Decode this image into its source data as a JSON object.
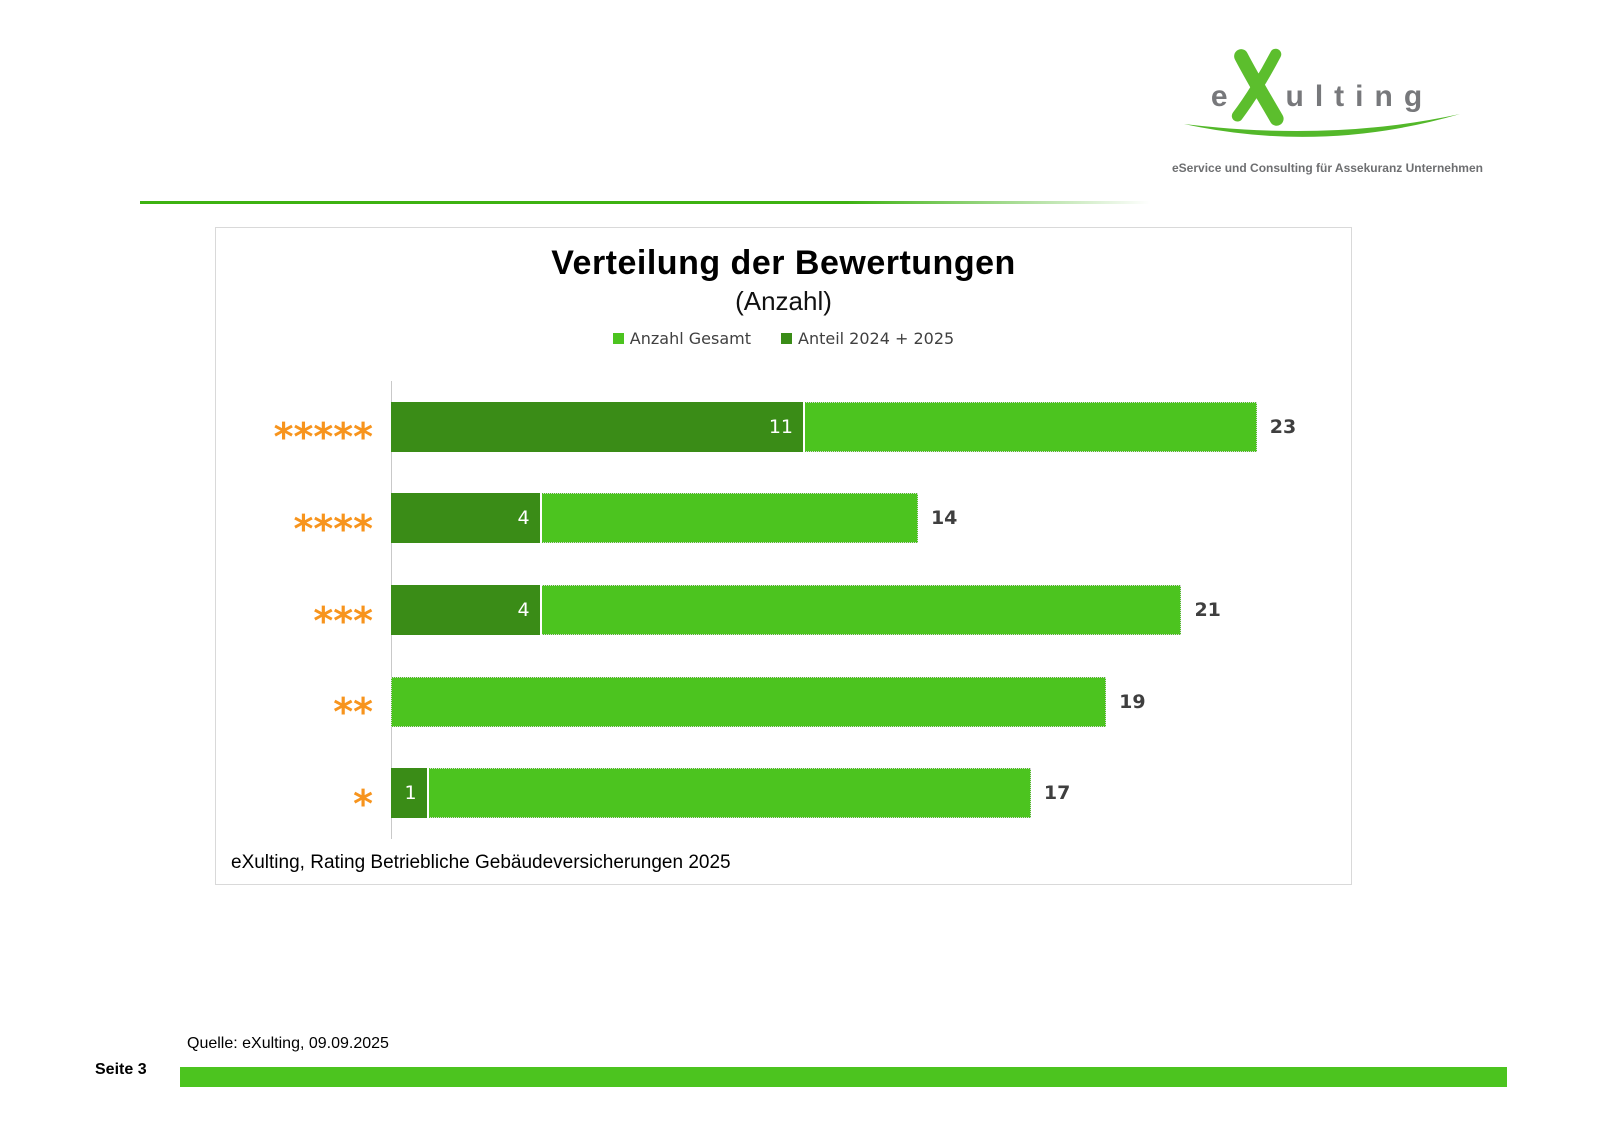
{
  "logo": {
    "word_prefix": "e",
    "word_x": "X",
    "word_suffix": "ulting",
    "tagline": "eService und Consulting für Assekuranz Unternehmen"
  },
  "chart": {
    "title": "Verteilung der Bewertungen",
    "subtitle": "(Anzahl)",
    "caption": "eXulting, Rating Betriebliche Gebäudeversicherungen 2025"
  },
  "chart_data": {
    "type": "bar",
    "orientation": "horizontal",
    "title": "Verteilung der Bewertungen",
    "subtitle": "(Anzahl)",
    "categories": [
      "*****",
      "****",
      "***",
      "**",
      "*"
    ],
    "series": [
      {
        "name": "Anzahl Gesamt",
        "color": "#4CC41F",
        "values": [
          23,
          14,
          21,
          19,
          17
        ]
      },
      {
        "name": "Anteil 2024 + 2025",
        "color": "#3A8C17",
        "values": [
          11,
          4,
          4,
          0,
          1
        ]
      }
    ],
    "xlim": [
      0,
      25
    ],
    "legend_position": "top",
    "grid": false,
    "value_label_style": "total outside right, partial inside bar in white"
  },
  "footer": {
    "source": "Quelle: eXulting,  09.09.2025",
    "page": "Seite 3"
  },
  "colors": {
    "light_green": "#4CC41F",
    "dark_green": "#3A8C17",
    "star_orange": "#F7941D",
    "value_label": "#3F3F3F",
    "axis_line": "#C9C9C9",
    "box_border": "#D9D9D9",
    "header_rule_green": "#3DB212",
    "logo_green": "#5CBE2D",
    "logo_gray": "#77787B"
  }
}
